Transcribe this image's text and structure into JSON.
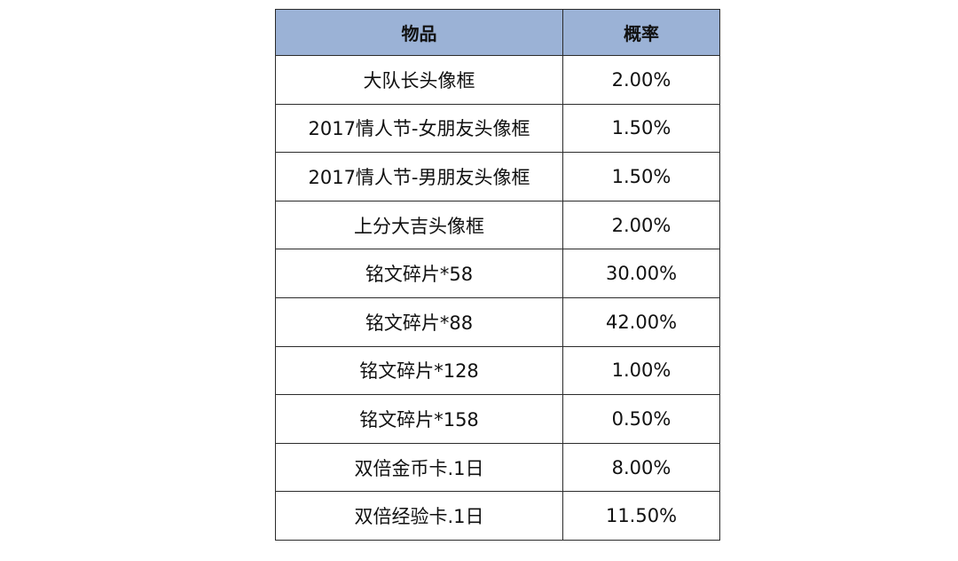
{
  "table": {
    "headers": [
      "物品",
      "概率"
    ],
    "rows": [
      [
        "大队长头像框",
        "2.00%"
      ],
      [
        "2017情人节-女朋友头像框",
        "1.50%"
      ],
      [
        "2017情人节-男朋友头像框",
        "1.50%"
      ],
      [
        "上分大吉头像框",
        "2.00%"
      ],
      [
        "铭文碎片*58",
        "30.00%"
      ],
      [
        "铭文碎片*88",
        "42.00%"
      ],
      [
        "铭文碎片*128",
        "1.00%"
      ],
      [
        "铭文碎片*158",
        "0.50%"
      ],
      [
        "双倍金币卡.1日",
        "8.00%"
      ],
      [
        "双倍经验卡.1日",
        "11.50%"
      ]
    ]
  },
  "colors": {
    "header_bg": "#9bb2d6",
    "border": "#2b2b2b"
  }
}
